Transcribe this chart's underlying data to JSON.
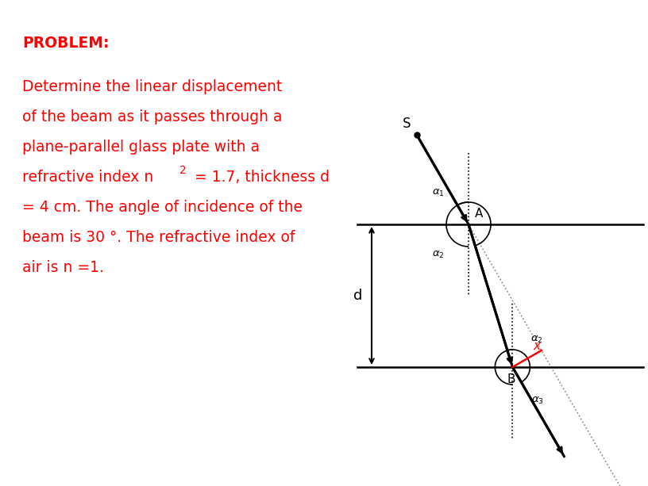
{
  "text_problem": "PROBLEM:",
  "text_line1": "Determine the linear displacement",
  "text_line2": "of the beam as it passes through a",
  "text_line3": "plane-parallel glass plate with a",
  "text_line4": "refractive index n",
  "text_line4b": " = 1.7, thickness d",
  "text_line5": "= 4 cm. The angle of incidence of the",
  "text_line6": "beam is 30 °. The refractive index of",
  "text_line7": "air is n =1.",
  "text_color": "#ff0000",
  "bg_color": "#ffffff",
  "diagram_color": "#000000",
  "x_color": "#ff0000",
  "n1": 1.0,
  "n2": 1.7,
  "alpha1_deg": 30,
  "font_size_text": 13.5,
  "font_size_problem": 13.5,
  "font_size_labels": 11,
  "font_size_angles": 9.5
}
